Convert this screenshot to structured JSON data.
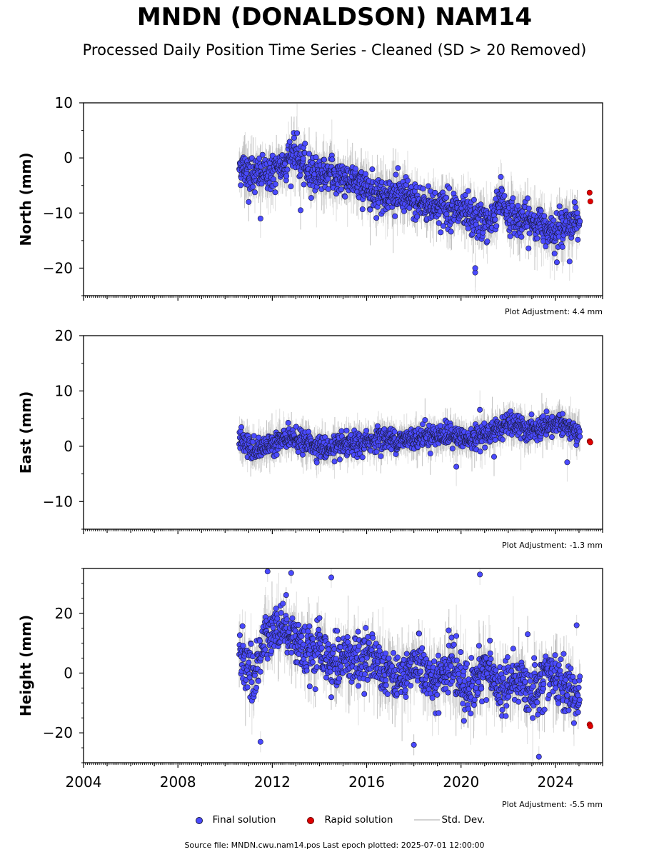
{
  "title": "MNDN (DONALDSON) NAM14",
  "subtitle": "Processed Daily Position Time Series - Cleaned (SD > 20 Removed)",
  "legend": {
    "final": "Final solution",
    "rapid": "Rapid solution",
    "std": "Std. Dev."
  },
  "source": "Source file: MNDN.cwu.nam14.pos  Last epoch plotted: 2025-07-01 12:00:00",
  "colors": {
    "final": "#4a4aff",
    "rapid": "#e00000",
    "std": "#c8c8c8",
    "edge": "#1a1a3a"
  },
  "chart_data": [
    {
      "type": "scatter",
      "panel": "north",
      "ylabel": "North (mm)",
      "xlim": [
        2004.0,
        2026.0
      ],
      "ylim": [
        -25,
        10
      ],
      "yticks": [
        -20,
        -10,
        0,
        10
      ],
      "adjustment": "Plot Adjustment: 4.4 mm",
      "series": [
        {
          "name": "Final solution",
          "trend": [
            [
              2010.6,
              -1.5
            ],
            [
              2011.3,
              -3.0
            ],
            [
              2012.2,
              -2.5
            ],
            [
              2012.9,
              1.0
            ],
            [
              2013.5,
              -2.5
            ],
            [
              2014.3,
              -3.0
            ],
            [
              2015.0,
              -3.5
            ],
            [
              2015.8,
              -5.0
            ],
            [
              2016.5,
              -6.5
            ],
            [
              2017.5,
              -7.0
            ],
            [
              2018.5,
              -8.5
            ],
            [
              2019.5,
              -9.0
            ],
            [
              2020.4,
              -11.0
            ],
            [
              2021.2,
              -12.0
            ],
            [
              2021.7,
              -7.0
            ],
            [
              2022.0,
              -10.5
            ],
            [
              2022.8,
              -11.5
            ],
            [
              2023.6,
              -12.5
            ],
            [
              2024.2,
              -13.0
            ],
            [
              2024.9,
              -11.0
            ]
          ],
          "scatter": 2.3,
          "start": 2010.6,
          "end": 2025.05,
          "outliers": [
            [
              2020.6,
              -20.8
            ],
            [
              2020.6,
              -20.0
            ],
            [
              2013.2,
              -9.5
            ],
            [
              2011.5,
              -11.0
            ],
            [
              2024.6,
              -18.8
            ],
            [
              2011.0,
              -8.0
            ],
            [
              2020.3,
              -6.0
            ]
          ]
        },
        {
          "name": "Rapid solution",
          "points": [
            [
              2025.45,
              -6.3
            ],
            [
              2025.48,
              -7.9
            ]
          ]
        }
      ]
    },
    {
      "type": "scatter",
      "panel": "east",
      "ylabel": "East (mm)",
      "xlim": [
        2004.0,
        2026.0
      ],
      "ylim": [
        -15,
        20
      ],
      "yticks": [
        -10,
        0,
        10,
        20
      ],
      "adjustment": "Plot Adjustment: -1.3 mm",
      "series": [
        {
          "name": "Final solution",
          "trend": [
            [
              2010.6,
              1.0
            ],
            [
              2011.3,
              -1.0
            ],
            [
              2012.2,
              1.0
            ],
            [
              2012.9,
              1.5
            ],
            [
              2013.5,
              0.5
            ],
            [
              2014.3,
              -0.5
            ],
            [
              2015.0,
              0.0
            ],
            [
              2015.8,
              0.5
            ],
            [
              2016.5,
              1.5
            ],
            [
              2017.5,
              1.0
            ],
            [
              2018.5,
              2.0
            ],
            [
              2019.5,
              2.0
            ],
            [
              2020.4,
              1.0
            ],
            [
              2021.2,
              2.5
            ],
            [
              2021.7,
              3.5
            ],
            [
              2022.0,
              4.0
            ],
            [
              2022.8,
              3.0
            ],
            [
              2023.6,
              3.0
            ],
            [
              2024.2,
              4.5
            ],
            [
              2024.9,
              2.0
            ]
          ],
          "scatter": 1.4,
          "start": 2010.6,
          "end": 2025.05,
          "outliers": [
            [
              2020.8,
              6.6
            ],
            [
              2019.8,
              -3.7
            ],
            [
              2021.4,
              -1.9
            ],
            [
              2024.5,
              -2.9
            ]
          ]
        },
        {
          "name": "Rapid solution",
          "points": [
            [
              2025.45,
              0.9
            ],
            [
              2025.48,
              0.7
            ]
          ]
        }
      ]
    },
    {
      "type": "scatter",
      "panel": "height",
      "ylabel": "Height (mm)",
      "xlim": [
        2004.0,
        2026.0
      ],
      "ylim": [
        -30,
        35
      ],
      "yticks": [
        -20,
        0,
        20
      ],
      "xticks": [
        2004,
        2008,
        2012,
        2016,
        2020,
        2024
      ],
      "adjustment": "Plot Adjustment: -5.5 mm",
      "series": [
        {
          "name": "Final solution",
          "trend": [
            [
              2010.6,
              8.0
            ],
            [
              2011.2,
              -2.0
            ],
            [
              2011.8,
              14.0
            ],
            [
              2012.5,
              16.0
            ],
            [
              2013.0,
              12.0
            ],
            [
              2013.5,
              5.0
            ],
            [
              2014.0,
              8.0
            ],
            [
              2014.5,
              2.0
            ],
            [
              2015.0,
              6.0
            ],
            [
              2015.6,
              4.0
            ],
            [
              2016.2,
              6.0
            ],
            [
              2016.8,
              2.0
            ],
            [
              2017.5,
              -2.0
            ],
            [
              2018.2,
              4.0
            ],
            [
              2018.8,
              -4.0
            ],
            [
              2019.5,
              2.0
            ],
            [
              2020.3,
              -6.0
            ],
            [
              2021.0,
              2.0
            ],
            [
              2021.7,
              -6.0
            ],
            [
              2022.3,
              -2.0
            ],
            [
              2023.0,
              -6.0
            ],
            [
              2023.6,
              0.0
            ],
            [
              2024.3,
              -4.0
            ],
            [
              2024.9,
              -8.0
            ]
          ],
          "scatter": 6.0,
          "start": 2010.6,
          "end": 2025.05,
          "outliers": [
            [
              2020.8,
              33.0
            ],
            [
              2011.8,
              34.0
            ],
            [
              2012.8,
              33.5
            ],
            [
              2014.5,
              32.0
            ],
            [
              2011.5,
              -23.0
            ],
            [
              2018.0,
              -24.0
            ],
            [
              2023.3,
              -28.0
            ],
            [
              2024.9,
              16.0
            ]
          ]
        },
        {
          "name": "Rapid solution",
          "points": [
            [
              2025.45,
              -17.2
            ],
            [
              2025.48,
              -17.8
            ]
          ]
        }
      ]
    }
  ]
}
